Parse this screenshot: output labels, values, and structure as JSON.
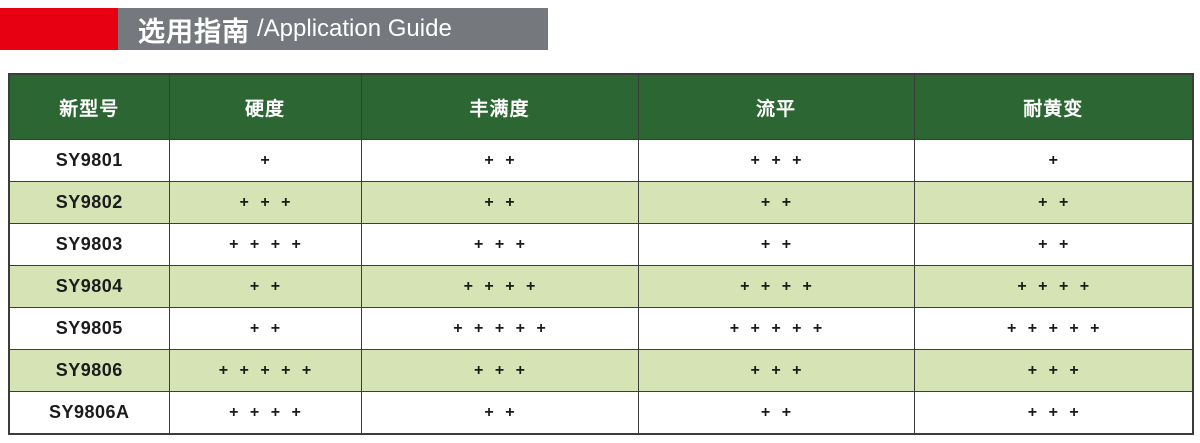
{
  "banner": {
    "title_zh": "选用指南",
    "title_en": "/Application Guide"
  },
  "table": {
    "headers": [
      "新型号",
      "硬度",
      "丰满度",
      "流平",
      "耐黄变"
    ],
    "rows": [
      {
        "model": "SY9801",
        "values": [
          "+",
          "+ +",
          "+ + +",
          "+"
        ]
      },
      {
        "model": "SY9802",
        "values": [
          "+ + +",
          "+ +",
          "+ +",
          "+ +"
        ]
      },
      {
        "model": "SY9803",
        "values": [
          "+ + + +",
          "+ + +",
          "+ +",
          "+ +"
        ]
      },
      {
        "model": "SY9804",
        "values": [
          "+ +",
          "+ + + +",
          "+ + + +",
          "+ + + +"
        ]
      },
      {
        "model": "SY9805",
        "values": [
          "+ +",
          "+ + + + +",
          "+ + + + +",
          "+ + + + +"
        ]
      },
      {
        "model": "SY9806",
        "values": [
          "+ + + + +",
          "+ + +",
          "+ + +",
          "+ + +"
        ]
      },
      {
        "model": "SY9806A",
        "values": [
          "+ + + +",
          "+ +",
          "+ +",
          "+ + +"
        ]
      }
    ]
  },
  "colors": {
    "red": "#e60012",
    "gray": "#75787c",
    "green": "#2c6632",
    "rowGreen": "#d5e3b5"
  }
}
